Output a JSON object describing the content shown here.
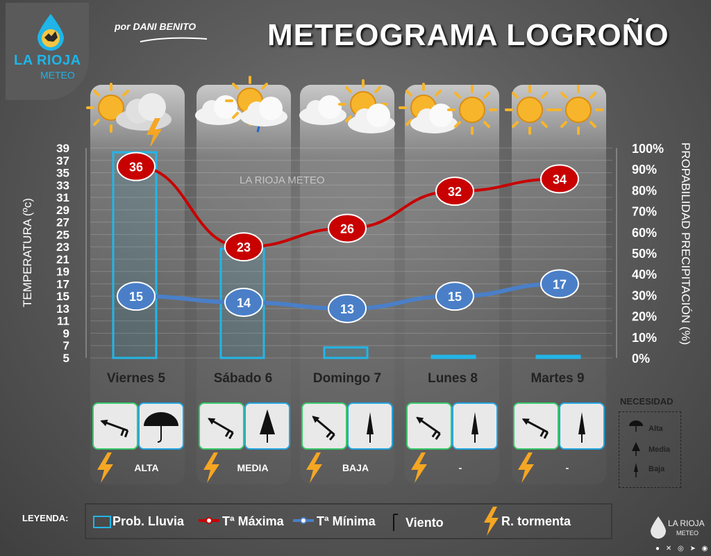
{
  "brand": {
    "line1": "LA RIOJA",
    "line2": "METEO",
    "byline": "por DANI BENITO",
    "watermark": "LA RIOJA METEO",
    "footer_line1": "LA RIOJA",
    "footer_line2": "METEO"
  },
  "title": "METEOGRAMA LOGROÑO",
  "chart_data": {
    "type": "line",
    "categories": [
      "Viernes 5",
      "Sábado 6",
      "Domingo 7",
      "Lunes 8",
      "Martes 9"
    ],
    "series": [
      {
        "name": "Tª Máxima",
        "values": [
          36,
          23,
          26,
          32,
          34
        ],
        "color": "#c80000"
      },
      {
        "name": "Tª Mínima",
        "values": [
          15,
          14,
          13,
          15,
          17
        ],
        "color": "#4a7fc8"
      },
      {
        "name": "Prob. Lluvia",
        "type": "bar",
        "values": [
          98,
          52,
          5,
          1,
          1
        ],
        "color": "#22b6e8"
      }
    ],
    "ylabel": "TEMPERATURA (ºc)",
    "y2label": "PROPABILIDAD PRECIPITACIÓN (%)",
    "ylim": [
      5,
      39
    ],
    "yticks": [
      "39",
      "37",
      "35",
      "33",
      "31",
      "29",
      "27",
      "25",
      "23",
      "21",
      "19",
      "17",
      "15",
      "13",
      "11",
      "9",
      "7",
      "5"
    ],
    "y2lim": [
      0,
      100
    ],
    "y2ticks": [
      "100%",
      "90%",
      "80%",
      "70%",
      "60%",
      "50%",
      "40%",
      "30%",
      "20%",
      "10%",
      "0%"
    ],
    "grid": true,
    "legend": "bottom"
  },
  "days": [
    {
      "need": "ALTA",
      "icons": "sun-thunderstorm-icon"
    },
    {
      "need": "MEDIA",
      "icons": "cloud-rain-icon"
    },
    {
      "need": "BAJA",
      "icons": "cloud-sun-icon"
    },
    {
      "need": "-",
      "icons": "sun-icon"
    },
    {
      "need": "-",
      "icons": "sun-icon"
    }
  ],
  "necesidad": {
    "title": "NECESIDAD",
    "alta": "Alta",
    "media": "Media",
    "baja": "Baja"
  },
  "legend": {
    "label": "LEYENDA:",
    "prob": "Prob. Lluvia",
    "max": "Tª Máxima",
    "min": "Tª Mínima",
    "wind": "Viento",
    "storm": "R. tormenta"
  },
  "colors": {
    "max": "#c80000",
    "min": "#4a7fc8",
    "rain": "#22b6e8",
    "storm": "#f5a623"
  }
}
